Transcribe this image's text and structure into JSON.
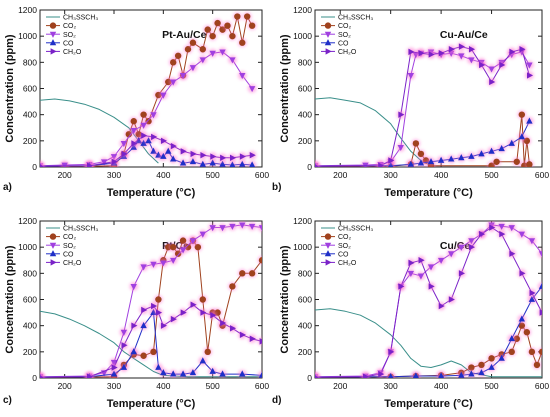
{
  "colors": {
    "CH3SSCH3": "#3a8f8a",
    "CO2": "#a0421e",
    "SO2": "#a040e0",
    "CO": "#1f2fc8",
    "CH2O": "#7a22c8",
    "glow": "#ff6fd0"
  },
  "axes": {
    "xlabel": "Temperature (°C)",
    "ylabel": "Concentration (ppm)",
    "xlim": [
      150,
      600
    ],
    "ylim": [
      0,
      1200
    ],
    "xticks": [
      200,
      300,
      400,
      500,
      600
    ],
    "yticks": [
      0,
      200,
      400,
      600,
      800,
      1000,
      1200
    ]
  },
  "chart_data": [
    {
      "type": "line",
      "panel_letter": "a)",
      "title": "Pt-Au/Ce",
      "legend": [
        "CH₃SSCH₃",
        "CO₂",
        "SO₂",
        "CO",
        "CH₂O"
      ],
      "series": [
        {
          "name": "CH₃SSCH₃",
          "x": [
            150,
            180,
            210,
            240,
            270,
            300,
            330,
            350,
            370,
            390
          ],
          "y": [
            510,
            520,
            505,
            480,
            440,
            380,
            300,
            200,
            100,
            30
          ]
        },
        {
          "name": "CO₂",
          "x": [
            200,
            250,
            300,
            320,
            330,
            340,
            350,
            360,
            370,
            390,
            410,
            420,
            430,
            440,
            450,
            460,
            480,
            490,
            500,
            510,
            520,
            530,
            540,
            550,
            560,
            570,
            580
          ],
          "y": [
            5,
            5,
            10,
            100,
            250,
            350,
            250,
            400,
            350,
            550,
            650,
            800,
            850,
            700,
            900,
            950,
            900,
            1050,
            1000,
            1100,
            1050,
            1080,
            1000,
            1150,
            950,
            1150,
            1080
          ]
        },
        {
          "name": "SO₂",
          "x": [
            150,
            200,
            250,
            280,
            300,
            320,
            340,
            360,
            380,
            400,
            420,
            440,
            460,
            480,
            500,
            520,
            540,
            560,
            580
          ],
          "y": [
            10,
            15,
            20,
            40,
            80,
            180,
            280,
            320,
            400,
            550,
            650,
            700,
            760,
            820,
            870,
            880,
            820,
            700,
            600
          ]
        },
        {
          "name": "CO",
          "x": [
            150,
            250,
            300,
            320,
            340,
            350,
            360,
            370,
            380,
            390,
            400,
            410,
            420,
            440,
            460,
            480,
            500,
            520,
            540,
            560,
            580
          ],
          "y": [
            5,
            10,
            30,
            80,
            150,
            200,
            180,
            200,
            120,
            90,
            80,
            120,
            60,
            30,
            40,
            20,
            30,
            20,
            15,
            20,
            15
          ]
        },
        {
          "name": "CH₂O",
          "x": [
            150,
            250,
            300,
            320,
            340,
            360,
            380,
            400,
            420,
            440,
            460,
            480,
            500,
            520,
            540,
            560,
            580
          ],
          "y": [
            5,
            10,
            40,
            100,
            180,
            240,
            230,
            200,
            160,
            120,
            100,
            90,
            80,
            70,
            70,
            80,
            90
          ]
        }
      ]
    },
    {
      "type": "line",
      "panel_letter": "b)",
      "title": "Cu-Au/Ce",
      "legend": [
        "CH₃SSCH₃",
        "CO₂",
        "SO₂",
        "CO",
        "CH₂O"
      ],
      "series": [
        {
          "name": "CH₃SSCH₃",
          "x": [
            150,
            180,
            210,
            240,
            270,
            300,
            320,
            340,
            360,
            380
          ],
          "y": [
            520,
            530,
            510,
            490,
            430,
            330,
            220,
            120,
            50,
            10
          ]
        },
        {
          "name": "CO₂",
          "x": [
            150,
            300,
            340,
            350,
            360,
            370,
            380,
            500,
            510,
            550,
            560,
            565,
            570,
            575
          ],
          "y": [
            5,
            5,
            20,
            180,
            100,
            50,
            10,
            10,
            40,
            40,
            400,
            10,
            200,
            20
          ]
        },
        {
          "name": "SO₂",
          "x": [
            150,
            250,
            280,
            300,
            320,
            340,
            350,
            360,
            380,
            400,
            420,
            440,
            460,
            480,
            500,
            520,
            540,
            560,
            575
          ],
          "y": [
            10,
            15,
            20,
            40,
            150,
            700,
            860,
            870,
            880,
            860,
            870,
            850,
            820,
            800,
            750,
            800,
            860,
            880,
            780
          ]
        },
        {
          "name": "CO",
          "x": [
            150,
            300,
            340,
            360,
            380,
            400,
            420,
            440,
            460,
            480,
            500,
            520,
            540,
            560,
            575
          ],
          "y": [
            5,
            10,
            20,
            30,
            40,
            50,
            60,
            70,
            80,
            100,
            120,
            140,
            180,
            230,
            350
          ]
        },
        {
          "name": "CH₂O",
          "x": [
            150,
            280,
            300,
            320,
            340,
            360,
            380,
            400,
            420,
            440,
            460,
            480,
            500,
            520,
            540,
            560,
            575
          ],
          "y": [
            5,
            10,
            50,
            400,
            880,
            870,
            860,
            870,
            900,
            920,
            900,
            780,
            650,
            780,
            880,
            900,
            700
          ]
        }
      ]
    },
    {
      "type": "line",
      "panel_letter": "c)",
      "title": "Pt/Ce",
      "legend": [
        "CH₃SSCH₃",
        "CO₂",
        "SO₂",
        "CO",
        "CH₂O"
      ],
      "series": [
        {
          "name": "CH₃SSCH₃",
          "x": [
            150,
            180,
            210,
            240,
            270,
            300,
            320,
            340,
            360,
            380,
            400,
            450,
            500,
            550,
            600
          ],
          "y": [
            510,
            490,
            450,
            400,
            340,
            270,
            200,
            150,
            100,
            50,
            20,
            10,
            10,
            10,
            10
          ]
        },
        {
          "name": "CO₂",
          "x": [
            150,
            300,
            320,
            340,
            360,
            380,
            390,
            400,
            410,
            420,
            430,
            440,
            450,
            460,
            470,
            480,
            490,
            500,
            510,
            520,
            540,
            560,
            580,
            600
          ],
          "y": [
            5,
            10,
            100,
            180,
            170,
            200,
            600,
            900,
            1000,
            1000,
            950,
            1050,
            1000,
            1050,
            1000,
            600,
            200,
            500,
            500,
            400,
            700,
            800,
            800,
            900
          ]
        },
        {
          "name": "SO₂",
          "x": [
            150,
            250,
            280,
            300,
            320,
            340,
            360,
            380,
            400,
            420,
            440,
            460,
            480,
            500,
            520,
            540,
            560,
            580,
            600
          ],
          "y": [
            10,
            15,
            40,
            120,
            350,
            700,
            850,
            870,
            880,
            900,
            980,
            1050,
            1100,
            1150,
            1150,
            1160,
            1170,
            1160,
            1150
          ]
        },
        {
          "name": "CO",
          "x": [
            150,
            250,
            300,
            320,
            340,
            360,
            380,
            390,
            400,
            420,
            440,
            460,
            480,
            500,
            520,
            560,
            600
          ],
          "y": [
            5,
            10,
            30,
            80,
            200,
            400,
            500,
            80,
            40,
            30,
            30,
            40,
            130,
            50,
            30,
            30,
            20
          ]
        },
        {
          "name": "CH₂O",
          "x": [
            150,
            250,
            300,
            320,
            340,
            360,
            380,
            390,
            400,
            420,
            440,
            460,
            480,
            500,
            520,
            540,
            560,
            580,
            600
          ],
          "y": [
            5,
            10,
            80,
            250,
            400,
            520,
            550,
            500,
            400,
            450,
            500,
            560,
            500,
            480,
            420,
            380,
            330,
            300,
            280
          ]
        }
      ]
    },
    {
      "type": "line",
      "panel_letter": "d)",
      "title": "Cu/Ce",
      "legend": [
        "CH₃SSCH₃",
        "CO₂",
        "SO₂",
        "CO",
        "CH₂O"
      ],
      "series": [
        {
          "name": "CH₃SSCH₃",
          "x": [
            150,
            180,
            210,
            240,
            270,
            300,
            320,
            340,
            360,
            380,
            400,
            420,
            440,
            460,
            500,
            550,
            600
          ],
          "y": [
            520,
            530,
            510,
            480,
            420,
            330,
            250,
            150,
            90,
            80,
            100,
            130,
            100,
            40,
            10,
            10,
            10
          ]
        },
        {
          "name": "CO₂",
          "x": [
            150,
            300,
            350,
            400,
            440,
            460,
            480,
            500,
            520,
            540,
            550,
            560,
            570,
            580,
            590,
            600
          ],
          "y": [
            5,
            10,
            15,
            20,
            40,
            80,
            100,
            150,
            180,
            200,
            300,
            400,
            350,
            200,
            100,
            200
          ]
        },
        {
          "name": "SO₂",
          "x": [
            150,
            250,
            280,
            300,
            320,
            340,
            360,
            380,
            400,
            420,
            440,
            460,
            480,
            500,
            520,
            540,
            560,
            580,
            600
          ],
          "y": [
            10,
            15,
            40,
            200,
            700,
            800,
            780,
            850,
            900,
            950,
            1000,
            1050,
            1100,
            1170,
            1160,
            1150,
            1100,
            1050,
            950
          ]
        },
        {
          "name": "CO",
          "x": [
            150,
            300,
            350,
            400,
            440,
            460,
            480,
            500,
            520,
            540,
            560,
            580,
            600
          ],
          "y": [
            5,
            10,
            15,
            15,
            20,
            30,
            40,
            80,
            150,
            300,
            450,
            600,
            700
          ]
        },
        {
          "name": "CH₂O",
          "x": [
            150,
            250,
            280,
            300,
            320,
            340,
            360,
            380,
            400,
            420,
            440,
            460,
            480,
            500,
            520,
            540,
            560,
            580,
            600
          ],
          "y": [
            5,
            10,
            30,
            200,
            700,
            880,
            900,
            700,
            550,
            600,
            800,
            1000,
            1100,
            1150,
            1100,
            950,
            800,
            650,
            500
          ]
        }
      ]
    }
  ]
}
